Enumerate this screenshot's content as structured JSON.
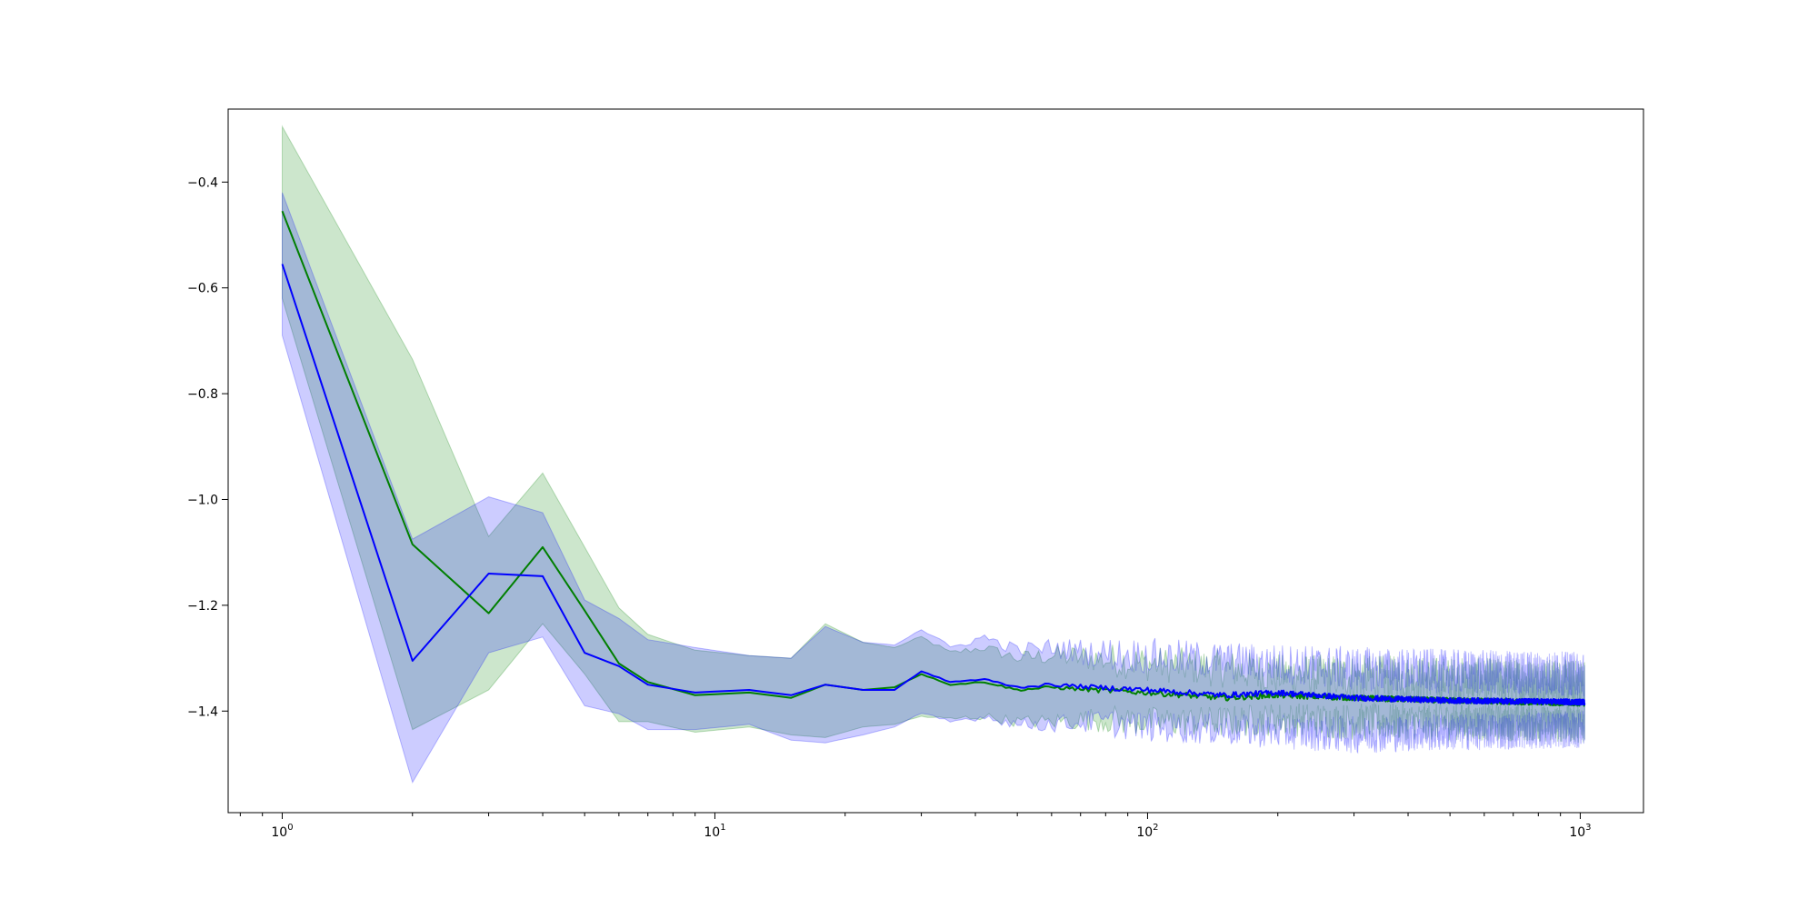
{
  "chart_data": {
    "type": "line",
    "title": "",
    "xlabel": "",
    "ylabel": "",
    "xscale": "log",
    "xlim": [
      0.75,
      1400
    ],
    "ylim": [
      -1.592,
      -0.262
    ],
    "grid": false,
    "x_ticks": [
      {
        "value": 1,
        "base": "10",
        "exp": "0"
      },
      {
        "value": 10,
        "base": "10",
        "exp": "1"
      },
      {
        "value": 100,
        "base": "10",
        "exp": "2"
      },
      {
        "value": 1000,
        "base": "10",
        "exp": "3"
      }
    ],
    "y_ticks": [
      {
        "value": -0.4,
        "label": "−0.4"
      },
      {
        "value": -0.6,
        "label": "−0.6"
      },
      {
        "value": -0.8,
        "label": "−0.8"
      },
      {
        "value": -1.0,
        "label": "−1.0"
      },
      {
        "value": -1.2,
        "label": "−1.2"
      },
      {
        "value": -1.4,
        "label": "−1.4"
      }
    ],
    "colors": {
      "series_a_line": "#007f00",
      "series_a_band": "#008000",
      "series_b_line": "#0000ff",
      "series_b_band": "#0000ff"
    },
    "x_end": 1024,
    "series": [
      {
        "color": "#007f00",
        "mean": [
          [
            1,
            -0.455
          ],
          [
            2,
            -1.085
          ],
          [
            3,
            -1.215
          ],
          [
            4,
            -1.09
          ],
          [
            5,
            -1.21
          ],
          [
            6,
            -1.31
          ],
          [
            7,
            -1.345
          ],
          [
            9,
            -1.37
          ],
          [
            12,
            -1.365
          ],
          [
            15,
            -1.375
          ],
          [
            18,
            -1.35
          ],
          [
            22,
            -1.36
          ],
          [
            26,
            -1.355
          ],
          [
            30,
            -1.33
          ],
          [
            35,
            -1.35
          ],
          [
            42,
            -1.345
          ],
          [
            50,
            -1.36
          ],
          [
            60,
            -1.355
          ],
          [
            75,
            -1.36
          ],
          [
            100,
            -1.365
          ],
          [
            150,
            -1.375
          ],
          [
            200,
            -1.37
          ],
          [
            300,
            -1.375
          ],
          [
            500,
            -1.38
          ],
          [
            1024,
            -1.385
          ]
        ],
        "upper": [
          [
            1,
            -0.295
          ],
          [
            2,
            -0.735
          ],
          [
            3,
            -1.07
          ],
          [
            4,
            -0.95
          ],
          [
            5,
            -1.09
          ],
          [
            6,
            -1.205
          ],
          [
            7,
            -1.255
          ],
          [
            9,
            -1.285
          ],
          [
            12,
            -1.295
          ],
          [
            15,
            -1.3
          ],
          [
            18,
            -1.235
          ],
          [
            22,
            -1.27
          ],
          [
            26,
            -1.28
          ],
          [
            30,
            -1.26
          ],
          [
            35,
            -1.29
          ],
          [
            42,
            -1.28
          ],
          [
            50,
            -1.3
          ],
          [
            60,
            -1.295
          ],
          [
            75,
            -1.3
          ],
          [
            100,
            -1.31
          ],
          [
            150,
            -1.32
          ],
          [
            200,
            -1.33
          ],
          [
            300,
            -1.335
          ],
          [
            500,
            -1.34
          ],
          [
            1024,
            -1.345
          ]
        ],
        "lower": [
          [
            1,
            -0.62
          ],
          [
            2,
            -1.435
          ],
          [
            3,
            -1.36
          ],
          [
            4,
            -1.235
          ],
          [
            5,
            -1.33
          ],
          [
            6,
            -1.42
          ],
          [
            7,
            -1.42
          ],
          [
            9,
            -1.44
          ],
          [
            12,
            -1.43
          ],
          [
            15,
            -1.445
          ],
          [
            18,
            -1.45
          ],
          [
            22,
            -1.43
          ],
          [
            26,
            -1.425
          ],
          [
            30,
            -1.41
          ],
          [
            35,
            -1.415
          ],
          [
            42,
            -1.41
          ],
          [
            50,
            -1.42
          ],
          [
            60,
            -1.42
          ],
          [
            75,
            -1.415
          ],
          [
            100,
            -1.42
          ],
          [
            150,
            -1.42
          ],
          [
            200,
            -1.415
          ],
          [
            300,
            -1.42
          ],
          [
            500,
            -1.42
          ],
          [
            1024,
            -1.425
          ]
        ]
      },
      {
        "color": "#0000ff",
        "mean": [
          [
            1,
            -0.555
          ],
          [
            2,
            -1.305
          ],
          [
            3,
            -1.14
          ],
          [
            4,
            -1.145
          ],
          [
            5,
            -1.29
          ],
          [
            6,
            -1.315
          ],
          [
            7,
            -1.35
          ],
          [
            9,
            -1.365
          ],
          [
            12,
            -1.36
          ],
          [
            15,
            -1.37
          ],
          [
            18,
            -1.35
          ],
          [
            22,
            -1.36
          ],
          [
            26,
            -1.36
          ],
          [
            30,
            -1.325
          ],
          [
            35,
            -1.345
          ],
          [
            42,
            -1.34
          ],
          [
            50,
            -1.355
          ],
          [
            60,
            -1.35
          ],
          [
            75,
            -1.355
          ],
          [
            100,
            -1.36
          ],
          [
            150,
            -1.37
          ],
          [
            200,
            -1.365
          ],
          [
            300,
            -1.375
          ],
          [
            500,
            -1.38
          ],
          [
            1024,
            -1.383
          ]
        ],
        "upper": [
          [
            1,
            -0.42
          ],
          [
            2,
            -1.075
          ],
          [
            3,
            -0.995
          ],
          [
            4,
            -1.025
          ],
          [
            5,
            -1.19
          ],
          [
            6,
            -1.225
          ],
          [
            7,
            -1.265
          ],
          [
            9,
            -1.28
          ],
          [
            12,
            -1.295
          ],
          [
            15,
            -1.3
          ],
          [
            18,
            -1.24
          ],
          [
            22,
            -1.27
          ],
          [
            26,
            -1.275
          ],
          [
            30,
            -1.245
          ],
          [
            35,
            -1.28
          ],
          [
            42,
            -1.26
          ],
          [
            50,
            -1.285
          ],
          [
            60,
            -1.28
          ],
          [
            75,
            -1.29
          ],
          [
            100,
            -1.295
          ],
          [
            150,
            -1.305
          ],
          [
            200,
            -1.31
          ],
          [
            300,
            -1.32
          ],
          [
            500,
            -1.325
          ],
          [
            1024,
            -1.33
          ]
        ],
        "lower": [
          [
            1,
            -0.69
          ],
          [
            2,
            -1.535
          ],
          [
            3,
            -1.29
          ],
          [
            4,
            -1.26
          ],
          [
            5,
            -1.39
          ],
          [
            6,
            -1.405
          ],
          [
            7,
            -1.435
          ],
          [
            9,
            -1.435
          ],
          [
            12,
            -1.425
          ],
          [
            15,
            -1.455
          ],
          [
            18,
            -1.46
          ],
          [
            22,
            -1.445
          ],
          [
            26,
            -1.43
          ],
          [
            30,
            -1.405
          ],
          [
            35,
            -1.42
          ],
          [
            42,
            -1.41
          ],
          [
            50,
            -1.425
          ],
          [
            60,
            -1.425
          ],
          [
            75,
            -1.42
          ],
          [
            100,
            -1.43
          ],
          [
            150,
            -1.435
          ],
          [
            200,
            -1.44
          ],
          [
            300,
            -1.445
          ],
          [
            500,
            -1.44
          ],
          [
            1024,
            -1.435
          ]
        ]
      }
    ]
  }
}
